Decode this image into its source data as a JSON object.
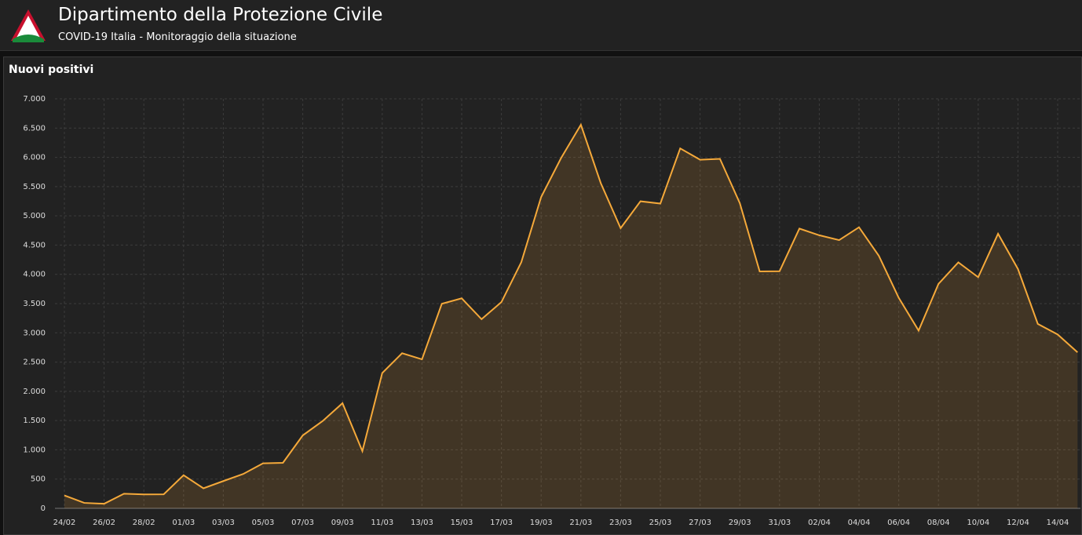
{
  "header": {
    "title": "Dipartimento della Protezione Civile",
    "subtitle": "COVID-19 Italia - Monitoraggio della situazione"
  },
  "chart_data": {
    "type": "line",
    "title": "Nuovi positivi",
    "categories": [
      "24/02",
      null,
      "26/02",
      null,
      "28/02",
      null,
      "01/03",
      null,
      "03/03",
      null,
      "05/03",
      null,
      "07/03",
      null,
      "09/03",
      null,
      "11/03",
      null,
      "13/03",
      null,
      "15/03",
      null,
      "17/03",
      null,
      "19/03",
      null,
      "21/03",
      null,
      "23/03",
      null,
      "25/03",
      null,
      "27/03",
      null,
      "29/03",
      null,
      "31/03",
      null,
      "02/04",
      null,
      "04/04",
      null,
      "06/04",
      null,
      "08/04",
      null,
      "10/04",
      null,
      "12/04",
      null,
      "14/04",
      null
    ],
    "series": [
      {
        "name": "Nuovi positivi",
        "color": "#f5a93a",
        "values": [
          221,
          93,
          78,
          250,
          238,
          240,
          566,
          342,
          466,
          587,
          769,
          778,
          1247,
          1492,
          1797,
          977,
          2313,
          2651,
          2547,
          3497,
          3590,
          3233,
          3526,
          4207,
          5322,
          5986,
          6557,
          5560,
          4789,
          5249,
          5210,
          6153,
          5959,
          5974,
          5217,
          4050,
          4053,
          4782,
          4668,
          4585,
          4805,
          4316,
          3599,
          3039,
          3836,
          4204,
          3951,
          4694,
          4092,
          3153,
          2972,
          2667
        ]
      }
    ],
    "ylim": [
      0,
      7000
    ],
    "yticks": [
      0,
      500,
      {
        "value": 1000,
        "label": "1.000"
      },
      {
        "value": 1500,
        "label": "1.500"
      },
      {
        "value": 2000,
        "label": "2.000"
      },
      {
        "value": 2500,
        "label": "2.500"
      },
      {
        "value": 3000,
        "label": "3.000"
      },
      {
        "value": 3500,
        "label": "3.500"
      },
      {
        "value": 4000,
        "label": "4.000"
      },
      {
        "value": 4500,
        "label": "4.500"
      },
      {
        "value": 5000,
        "label": "5.000"
      },
      {
        "value": 5500,
        "label": "5.500"
      },
      {
        "value": 6000,
        "label": "6.000"
      },
      {
        "value": 6500,
        "label": "6.500"
      },
      {
        "value": 7000,
        "label": "7.000"
      }
    ],
    "grid": true
  }
}
